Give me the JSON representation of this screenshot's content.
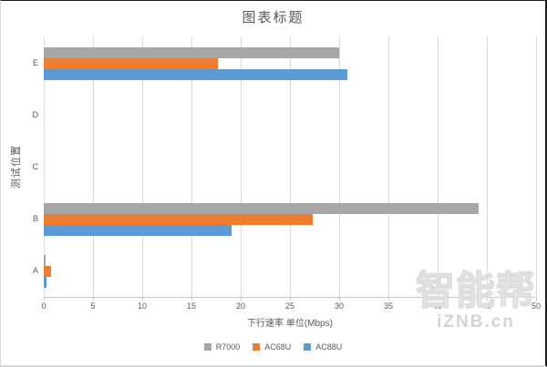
{
  "chart_data": {
    "type": "bar",
    "orientation": "horizontal",
    "title": "图表标题",
    "xlabel": "下行速率 单位(Mbps)",
    "ylabel": "测试位置",
    "categories": [
      "E",
      "D",
      "C",
      "B",
      "A"
    ],
    "series": [
      {
        "name": "R7000",
        "color": "#A6A6A6",
        "values": [
          30.0,
          0,
          0,
          44.2,
          0.2
        ]
      },
      {
        "name": "AC68U",
        "color": "#ED7D31",
        "values": [
          17.7,
          0,
          0,
          27.3,
          0.7
        ]
      },
      {
        "name": "AC88U",
        "color": "#5B9BD5",
        "values": [
          30.8,
          0,
          0,
          19.1,
          0.3
        ]
      }
    ],
    "xlim": [
      0,
      50
    ],
    "x_ticks": [
      0,
      5,
      10,
      15,
      20,
      25,
      30,
      35,
      40,
      45,
      50
    ],
    "grid": true,
    "legend_position": "bottom"
  },
  "watermark": {
    "brand": "智能帮",
    "site": "iZNB.cn"
  },
  "colors": {
    "text": "#595959",
    "gridline": "#D9D9D9",
    "axis_line": "#C9C9C9",
    "background": "#FFFFFF"
  }
}
